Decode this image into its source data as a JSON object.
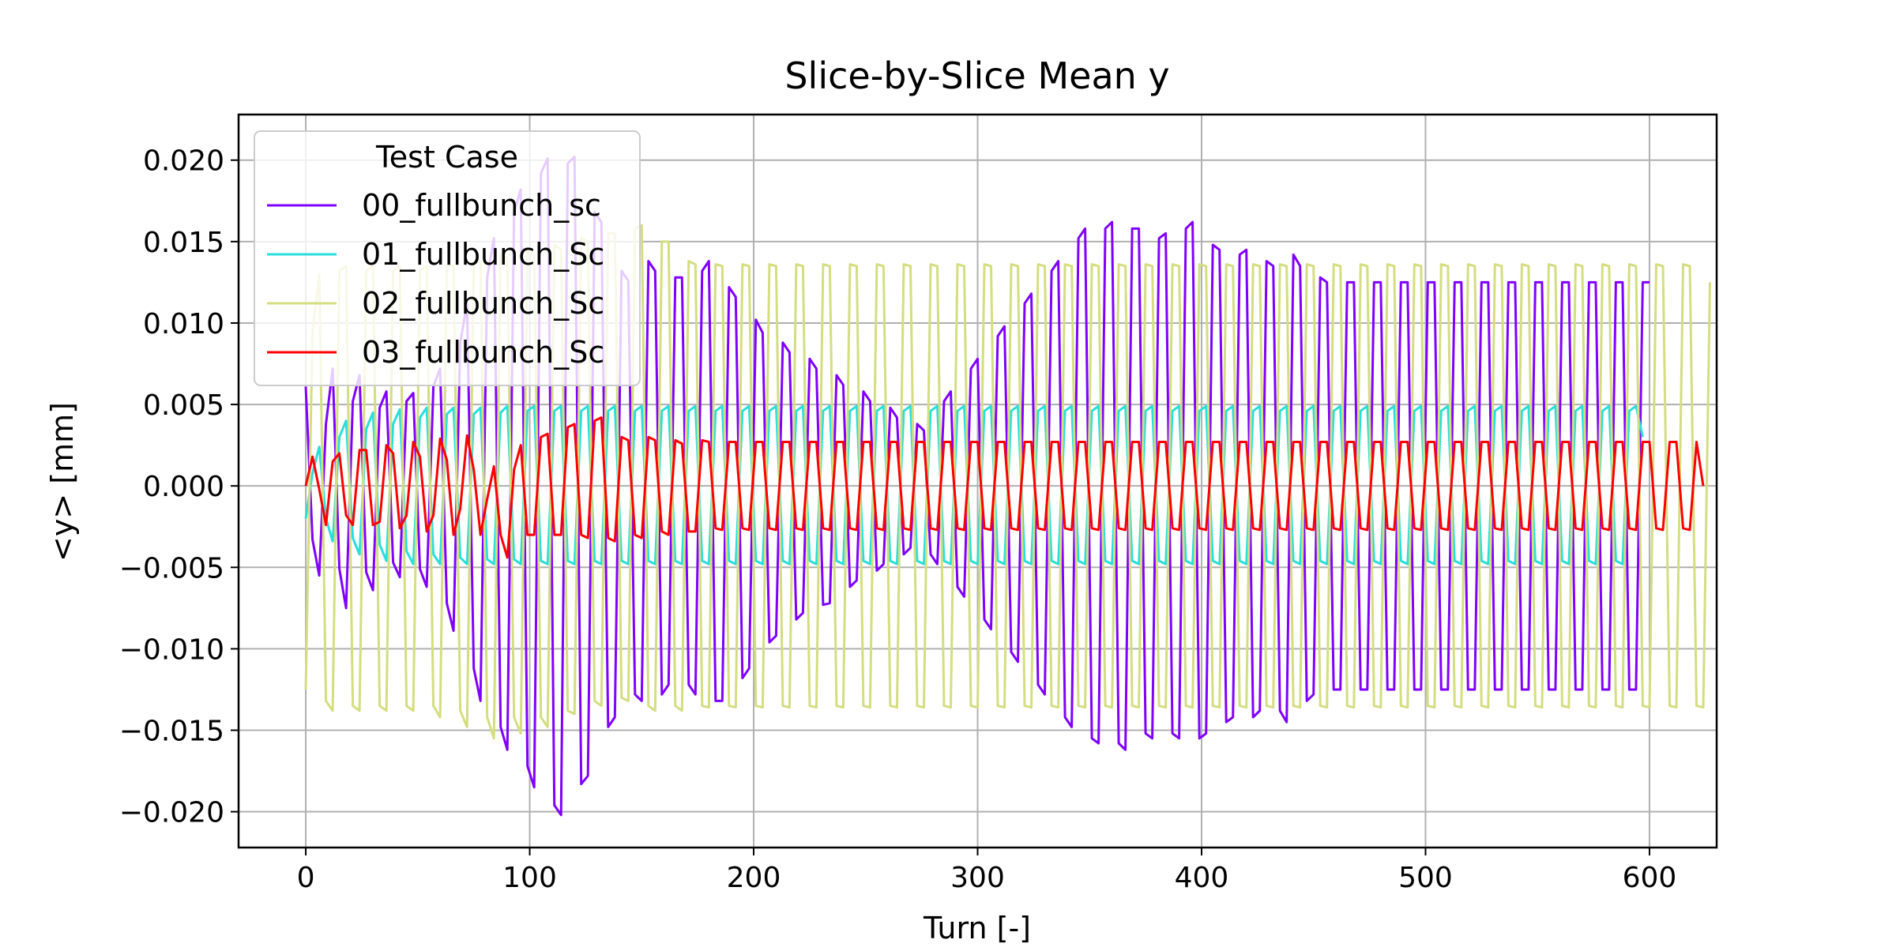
{
  "chart_data": {
    "type": "line",
    "title": "Slice-by-Slice Mean y",
    "xlabel": "Turn [-]",
    "ylabel": "<y> [mm]",
    "xlim": [
      -30,
      630
    ],
    "ylim": [
      -0.0222,
      0.0228
    ],
    "xticks": [
      0,
      100,
      200,
      300,
      400,
      500,
      600
    ],
    "xtick_labels": [
      "0",
      "100",
      "200",
      "300",
      "400",
      "500",
      "600"
    ],
    "yticks": [
      -0.02,
      -0.015,
      -0.01,
      -0.005,
      0.0,
      0.005,
      0.01,
      0.015,
      0.02
    ],
    "ytick_labels": [
      "−0.020",
      "−0.015",
      "−0.010",
      "−0.005",
      "0.000",
      "0.005",
      "0.010",
      "0.015",
      "0.020"
    ],
    "grid": true,
    "legend": {
      "title": "Test Case",
      "placement": "upper-left"
    },
    "sampling": {
      "x_start": 0,
      "x_step": 3
    },
    "series": [
      {
        "name": "00_fullbunch_sc",
        "color": "#8000ff",
        "values": [
          0.0061,
          -0.0033,
          -0.0055,
          0.0038,
          0.0072,
          -0.0051,
          -0.0075,
          0.0052,
          0.0068,
          -0.0053,
          -0.0064,
          0.0048,
          0.0058,
          -0.0047,
          -0.0056,
          0.0052,
          0.0057,
          -0.0051,
          -0.0062,
          0.0061,
          0.0072,
          -0.0072,
          -0.0089,
          0.0088,
          0.0112,
          -0.0112,
          -0.0132,
          0.0128,
          0.0152,
          -0.0148,
          -0.0162,
          0.0168,
          0.0182,
          -0.0172,
          -0.0185,
          0.0192,
          0.0201,
          -0.0196,
          -0.0202,
          0.0198,
          0.0202,
          -0.0183,
          -0.0178,
          0.0168,
          0.0162,
          -0.0148,
          -0.0142,
          0.0132,
          0.0126,
          -0.0128,
          -0.0132,
          0.0138,
          0.0132,
          -0.0128,
          -0.0122,
          0.0128,
          0.0128,
          -0.0122,
          -0.0128,
          0.0132,
          0.0138,
          -0.0132,
          -0.0132,
          0.0122,
          0.0116,
          -0.0118,
          -0.0112,
          0.0102,
          0.0094,
          -0.0096,
          -0.0092,
          0.0088,
          0.0082,
          -0.0082,
          -0.0078,
          0.0078,
          0.0072,
          -0.0073,
          -0.0072,
          0.0068,
          0.0062,
          -0.0062,
          -0.0058,
          0.0058,
          0.0052,
          -0.0052,
          -0.0048,
          0.0048,
          0.0042,
          -0.0042,
          -0.0038,
          0.0038,
          0.0034,
          -0.0042,
          -0.0048,
          0.0052,
          0.0058,
          -0.0062,
          -0.0068,
          0.0072,
          0.0078,
          -0.0082,
          -0.0088,
          0.0092,
          0.0098,
          -0.0102,
          -0.0108,
          0.0112,
          0.0118,
          -0.0122,
          -0.0128,
          0.0132,
          0.0138,
          -0.0142,
          -0.0148,
          0.0152,
          0.0158,
          -0.0155,
          -0.0158,
          0.0158,
          0.0162,
          -0.0158,
          -0.0162,
          0.0158,
          0.0158,
          -0.0152,
          -0.0155,
          0.0152,
          0.0155,
          -0.0152,
          -0.0155,
          0.0158,
          0.0162,
          -0.0155,
          -0.0152,
          0.0148,
          0.0145,
          -0.0145,
          -0.0142,
          0.0142,
          0.0145,
          -0.0142,
          -0.0138,
          0.0138,
          0.0135,
          -0.0138,
          -0.0145,
          0.0142,
          0.0135,
          -0.0132,
          -0.0128,
          0.0128,
          0.0125,
          -0.0125,
          -0.0125,
          0.0125,
          0.0125,
          -0.0125,
          -0.0125,
          0.0125,
          0.0125,
          -0.0125,
          -0.0125,
          0.0125,
          0.0125,
          -0.0125,
          -0.0125,
          0.0125,
          0.0125,
          -0.0125,
          -0.0125,
          0.0125,
          0.0125,
          -0.0125,
          -0.0125,
          0.0125,
          0.0125,
          -0.0125,
          -0.0125,
          0.0125,
          0.0125,
          -0.0125,
          -0.0125,
          0.0125,
          0.0125,
          -0.0125,
          -0.0125,
          0.0125,
          0.0125,
          -0.0125,
          -0.0125,
          0.0125,
          0.0125,
          -0.0125,
          -0.0125,
          0.0125,
          0.0125,
          -0.0125,
          -0.0125,
          0.0125,
          0.0125
        ]
      },
      {
        "name": "01_fullbunch_Sc",
        "color": "#2adddd",
        "values": [
          -0.002,
          0.0008,
          0.0024,
          -0.002,
          -0.0034,
          0.003,
          0.004,
          -0.0032,
          -0.0042,
          0.0035,
          0.0045,
          -0.0036,
          -0.0046,
          0.0038,
          0.0047,
          -0.004,
          -0.0048,
          0.0042,
          0.0048,
          -0.0042,
          -0.0048,
          0.0044,
          0.0048,
          -0.0044,
          -0.0048,
          0.0044,
          0.0048,
          -0.0045,
          -0.0048,
          0.0045,
          0.0049,
          -0.0045,
          -0.0048,
          0.0046,
          0.0049,
          -0.0046,
          -0.0048,
          0.0046,
          0.0049,
          -0.0046,
          -0.0048,
          0.0046,
          0.0049,
          -0.0046,
          -0.0048,
          0.0046,
          0.0049,
          -0.0046,
          -0.0048,
          0.0046,
          0.0049,
          -0.0046,
          -0.0048,
          0.0046,
          0.0049,
          -0.0046,
          -0.0048,
          0.0046,
          0.0049,
          -0.0046,
          -0.0048,
          0.0046,
          0.0049,
          -0.0046,
          -0.0048,
          0.0046,
          0.0049,
          -0.0046,
          -0.0048,
          0.0046,
          0.0049,
          -0.0046,
          -0.0048,
          0.0046,
          0.0049,
          -0.0046,
          -0.0048,
          0.0046,
          0.0049,
          -0.0046,
          -0.0048,
          0.0046,
          0.0049,
          -0.0046,
          -0.0048,
          0.0046,
          0.0049,
          -0.0046,
          -0.0048,
          0.0046,
          0.0049,
          -0.0046,
          -0.0048,
          0.0046,
          0.0049,
          -0.0046,
          -0.0048,
          0.0046,
          0.0049,
          -0.0046,
          -0.0048,
          0.0046,
          0.0049,
          -0.0046,
          -0.0048,
          0.0046,
          0.0049,
          -0.0046,
          -0.0048,
          0.0046,
          0.0049,
          -0.0046,
          -0.0048,
          0.0046,
          0.0049,
          -0.0046,
          -0.0048,
          0.0046,
          0.0049,
          -0.0046,
          -0.0048,
          0.0046,
          0.0049,
          -0.0046,
          -0.0048,
          0.0046,
          0.0049,
          -0.0046,
          -0.0048,
          0.0046,
          0.0049,
          -0.0046,
          -0.0048,
          0.0046,
          0.0049,
          -0.0046,
          -0.0048,
          0.0046,
          0.0049,
          -0.0046,
          -0.0048,
          0.0046,
          0.0049,
          -0.0046,
          -0.0048,
          0.0046,
          0.0049,
          -0.0046,
          -0.0048,
          0.0046,
          0.0049,
          -0.0046,
          -0.0048,
          0.0046,
          0.0049,
          -0.0046,
          -0.0048,
          0.0046,
          0.0049,
          -0.0046,
          -0.0048,
          0.0046,
          0.0049,
          -0.0046,
          -0.0048,
          0.0046,
          0.0049,
          -0.0046,
          -0.0048,
          0.0046,
          0.0049,
          -0.0046,
          -0.0048,
          0.0046,
          0.0049,
          -0.0046,
          -0.0048,
          0.0046,
          0.0049,
          -0.0046,
          -0.0048,
          0.0046,
          0.0049,
          -0.0046,
          -0.0048,
          0.0046,
          0.0049,
          -0.0046,
          -0.0048,
          0.0046,
          0.0049,
          -0.0046,
          -0.0048,
          0.0046,
          0.0049,
          -0.0046,
          -0.0048,
          0.0046,
          0.0049,
          0.003
        ]
      },
      {
        "name": "02_fullbunch_Sc",
        "color": "#d4dd80",
        "values": [
          -0.0125,
          0.0095,
          0.013,
          -0.0132,
          -0.0138,
          0.0132,
          0.0135,
          -0.0135,
          -0.0138,
          0.0132,
          0.0135,
          -0.0135,
          -0.0138,
          0.0132,
          0.0135,
          -0.0135,
          -0.0138,
          0.0132,
          0.0135,
          -0.0135,
          -0.0142,
          0.0135,
          0.0135,
          -0.0138,
          -0.0148,
          0.0138,
          0.0138,
          -0.0142,
          -0.0155,
          0.0142,
          0.014,
          -0.0142,
          -0.0152,
          0.0145,
          0.0142,
          -0.0142,
          -0.0148,
          0.0148,
          0.0145,
          -0.0138,
          -0.014,
          0.0152,
          0.015,
          -0.0132,
          -0.0135,
          0.0155,
          0.0155,
          -0.013,
          -0.0132,
          0.0158,
          0.016,
          -0.0135,
          -0.0138,
          0.015,
          0.015,
          -0.0135,
          -0.0138,
          0.0138,
          0.0136,
          -0.0135,
          -0.0136,
          0.0136,
          0.0135,
          -0.0135,
          -0.0136,
          0.0136,
          0.0135,
          -0.0135,
          -0.0136,
          0.0136,
          0.0135,
          -0.0135,
          -0.0136,
          0.0136,
          0.0135,
          -0.0135,
          -0.0136,
          0.0136,
          0.0135,
          -0.0135,
          -0.0136,
          0.0136,
          0.0135,
          -0.0135,
          -0.0136,
          0.0136,
          0.0135,
          -0.0135,
          -0.0136,
          0.0136,
          0.0135,
          -0.0135,
          -0.0136,
          0.0136,
          0.0135,
          -0.0135,
          -0.0136,
          0.0136,
          0.0135,
          -0.0135,
          -0.0136,
          0.0136,
          0.0135,
          -0.0135,
          -0.0136,
          0.0136,
          0.0135,
          -0.0135,
          -0.0136,
          0.0136,
          0.0135,
          -0.0135,
          -0.0136,
          0.0136,
          0.0135,
          -0.0135,
          -0.0136,
          0.0136,
          0.0135,
          -0.0135,
          -0.0136,
          0.0136,
          0.0135,
          -0.0135,
          -0.0136,
          0.0136,
          0.0135,
          -0.0135,
          -0.0136,
          0.0136,
          0.0135,
          -0.0135,
          -0.0136,
          0.0136,
          0.0135,
          -0.0135,
          -0.0136,
          0.0136,
          0.0135,
          -0.0135,
          -0.0136,
          0.0136,
          0.0135,
          -0.0135,
          -0.0136,
          0.0136,
          0.0135,
          -0.0135,
          -0.0136,
          0.0136,
          0.0135,
          -0.0135,
          -0.0136,
          0.0136,
          0.0135,
          -0.0135,
          -0.0136,
          0.0136,
          0.0135,
          -0.0135,
          -0.0136,
          0.0136,
          0.0135,
          -0.0135,
          -0.0136,
          0.0136,
          0.0135,
          -0.0135,
          -0.0136,
          0.0136,
          0.0135,
          -0.0135,
          -0.0136,
          0.0136,
          0.0135,
          -0.0135,
          -0.0136,
          0.0136,
          0.0135,
          -0.0135,
          -0.0136,
          0.0136,
          0.0135,
          -0.0135,
          -0.0136,
          0.0136,
          0.0135,
          -0.0135,
          -0.0136,
          0.0136,
          0.0135,
          -0.0135,
          -0.0136,
          0.0136,
          0.0135,
          -0.0135,
          -0.0136,
          0.0136,
          0.0135,
          -0.0135,
          -0.0136,
          0.0136,
          0.0135,
          -0.0135,
          -0.0136,
          0.0136,
          0.0135,
          -0.0135,
          -0.0136,
          0.0125
        ]
      },
      {
        "name": "03_fullbunch_Sc",
        "color": "#ff0000",
        "values": [
          0.0,
          0.0018,
          -0.0002,
          -0.0024,
          0.0015,
          0.002,
          -0.0018,
          -0.0024,
          0.0022,
          0.0022,
          -0.0024,
          -0.0022,
          0.0025,
          0.002,
          -0.0026,
          -0.0018,
          0.0027,
          0.0018,
          -0.0028,
          -0.0018,
          0.0029,
          0.0016,
          -0.003,
          -0.0014,
          0.0031,
          0.001,
          -0.003,
          -0.0008,
          0.0012,
          -0.003,
          -0.0044,
          0.001,
          0.0025,
          -0.003,
          -0.003,
          0.003,
          0.0032,
          -0.003,
          -0.003,
          0.0036,
          0.0038,
          -0.003,
          -0.0032,
          0.004,
          0.0042,
          -0.0032,
          -0.0034,
          0.003,
          0.0028,
          -0.003,
          -0.0032,
          0.003,
          0.0028,
          -0.0028,
          -0.003,
          0.0028,
          0.0026,
          -0.0028,
          -0.0028,
          0.0028,
          0.0027,
          -0.0026,
          -0.0027,
          0.0027,
          0.0027,
          -0.0026,
          -0.0027,
          0.0027,
          0.0027,
          -0.0026,
          -0.0027,
          0.0027,
          0.0027,
          -0.0026,
          -0.0027,
          0.0027,
          0.0027,
          -0.0026,
          -0.0027,
          0.0027,
          0.0027,
          -0.0026,
          -0.0027,
          0.0027,
          0.0027,
          -0.0026,
          -0.0027,
          0.0027,
          0.0027,
          -0.0026,
          -0.0027,
          0.0027,
          0.0027,
          -0.0026,
          -0.0027,
          0.0027,
          0.0027,
          -0.0026,
          -0.0027,
          0.0027,
          0.0027,
          -0.0026,
          -0.0027,
          0.0027,
          0.0027,
          -0.0026,
          -0.0027,
          0.0027,
          0.0027,
          -0.0026,
          -0.0027,
          0.0027,
          0.0027,
          -0.0026,
          -0.0027,
          0.0027,
          0.0027,
          -0.0026,
          -0.0027,
          0.0027,
          0.0027,
          -0.0026,
          -0.0027,
          0.0027,
          0.0027,
          -0.0026,
          -0.0027,
          0.0027,
          0.0027,
          -0.0026,
          -0.0027,
          0.0027,
          0.0027,
          -0.0026,
          -0.0027,
          0.0027,
          0.0027,
          -0.0026,
          -0.0027,
          0.0027,
          0.0027,
          -0.0026,
          -0.0027,
          0.0027,
          0.0027,
          -0.0026,
          -0.0027,
          0.0027,
          0.0027,
          -0.0026,
          -0.0027,
          0.0027,
          0.0027,
          -0.0026,
          -0.0027,
          0.0027,
          0.0027,
          -0.0026,
          -0.0027,
          0.0027,
          0.0027,
          -0.0026,
          -0.0027,
          0.0027,
          0.0027,
          -0.0026,
          -0.0027,
          0.0027,
          0.0027,
          -0.0026,
          -0.0027,
          0.0027,
          0.0027,
          -0.0026,
          -0.0027,
          0.0027,
          0.0027,
          -0.0026,
          -0.0027,
          0.0027,
          0.0027,
          -0.0026,
          -0.0027,
          0.0027,
          0.0027,
          -0.0026,
          -0.0027,
          0.0027,
          0.0027,
          -0.0026,
          -0.0027,
          0.0027,
          0.0027,
          -0.0026,
          -0.0027,
          0.0027,
          0.0027,
          -0.0026,
          -0.0027,
          0.0027,
          0.0027,
          -0.0026,
          -0.0027,
          0.0027,
          0.0027,
          -0.0026,
          -0.0027,
          0.0027,
          0.0
        ]
      }
    ]
  }
}
